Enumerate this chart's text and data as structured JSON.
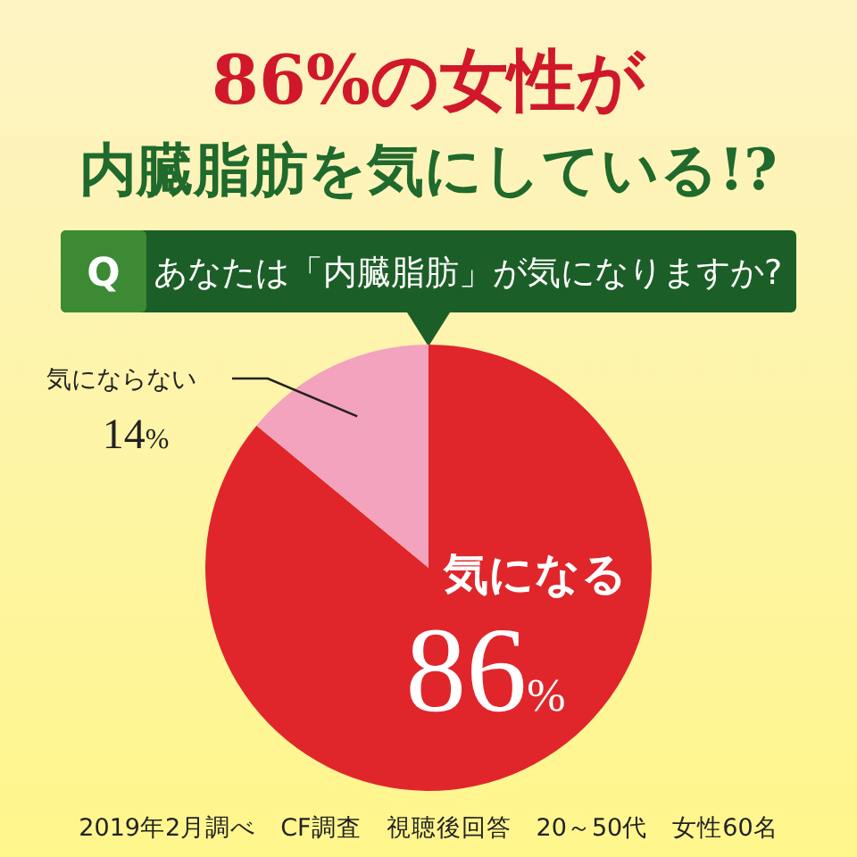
{
  "chart_data": {
    "type": "pie",
    "title": "86%の女性が",
    "subtitle": "内臓脂肪を気にしている!?",
    "categories": [
      "気になる",
      "気にならない"
    ],
    "values": [
      86,
      14
    ],
    "colors": [
      "#e0262b",
      "#f3a3bd"
    ],
    "value_labels": [
      "86%",
      "14%"
    ],
    "annotations": [
      "Q",
      "あなたは「内臓脂肪」が気になりますか?",
      "2019年2月調べ　CF調査　視聴後回答　20～50代　女性60名"
    ]
  }
}
